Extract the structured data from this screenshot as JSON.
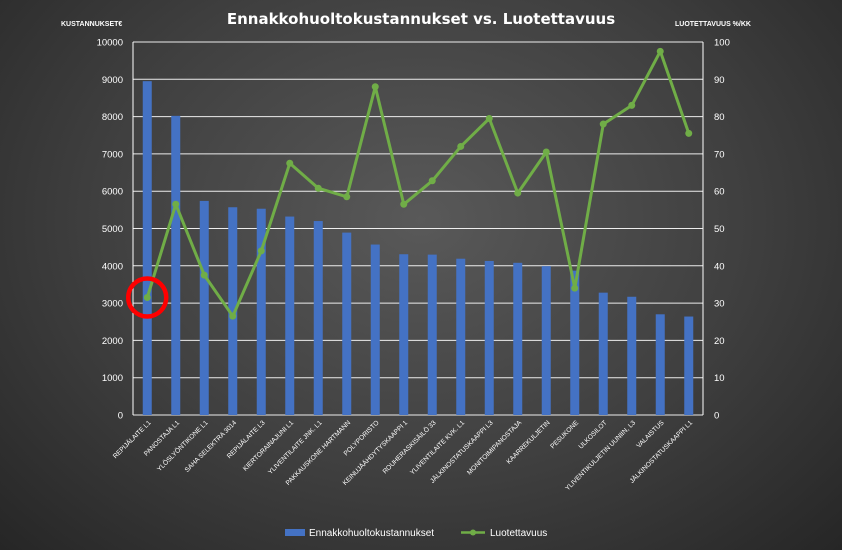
{
  "chart_data": {
    "type": "bar+line",
    "title": "Ennakkohuoltokustannukset vs. Luotettavuus",
    "ylabel_left": "KUSTANNUKSET€",
    "ylabel_right": "LUOTETTAVUUS %/KK",
    "ylim_left": [
      0,
      10000
    ],
    "ylim_right": [
      0,
      100
    ],
    "yticks_left": [
      "0",
      "1000",
      "2000",
      "3000",
      "4000",
      "5000",
      "6000",
      "7000",
      "8000",
      "9000",
      "10000"
    ],
    "yticks_right": [
      "0",
      "10",
      "20",
      "30",
      "40",
      "50",
      "60",
      "70",
      "80",
      "90",
      "100"
    ],
    "categories": [
      "REPIJÄLAITE L1",
      "PANOSTAJA L1",
      "YLÖSLYÖNTIKONE L1",
      "SAHA SELEKTRA 3014",
      "REPIJÄLAITE L3",
      "KIERTORAINAJUNI L1",
      "YLIVENTILAITE JNK. L1",
      "PAKKAUSKONE HARTMANN",
      "POLYPORISTO",
      "KEINUJÄÄHDYTYSKAAPPI 1",
      "ROUHERASKISÄILÖ 33",
      "YLIVENTILAITE KVK. L1",
      "JÄLKINOSTATUSKAAPPI L3",
      "MONITOIMIPANOSTAJA",
      "KAARREKULJETIN",
      "PESUKONE",
      "ULKOSILOT",
      "YLIVENTIKULJETIN UUNIIN, L3",
      "VALAISTUS",
      "JÄLKINOSTATUSKAAPPI L1"
    ],
    "series": [
      {
        "name": "Ennakkohuoltokustannukset",
        "type": "bar",
        "axis": "left",
        "color": "#4472C4",
        "values": [
          8950,
          8020,
          5740,
          5570,
          5530,
          5320,
          5200,
          4890,
          4570,
          4310,
          4300,
          4190,
          4130,
          4080,
          3990,
          3870,
          3280,
          3170,
          2700,
          2640
        ]
      },
      {
        "name": "Luotettavuus",
        "type": "line",
        "axis": "right",
        "color": "#70AD47",
        "values": [
          31.5,
          56.5,
          37.5,
          26.5,
          44,
          67.5,
          60.8,
          58.5,
          88,
          56.5,
          62.8,
          72,
          79.5,
          59.5,
          70.5,
          34,
          78,
          83,
          97.5,
          75.5
        ]
      }
    ],
    "annotation": {
      "type": "circle",
      "color": "#FF0000",
      "category_index": 0
    },
    "legend_position": "bottom",
    "grid": true
  }
}
